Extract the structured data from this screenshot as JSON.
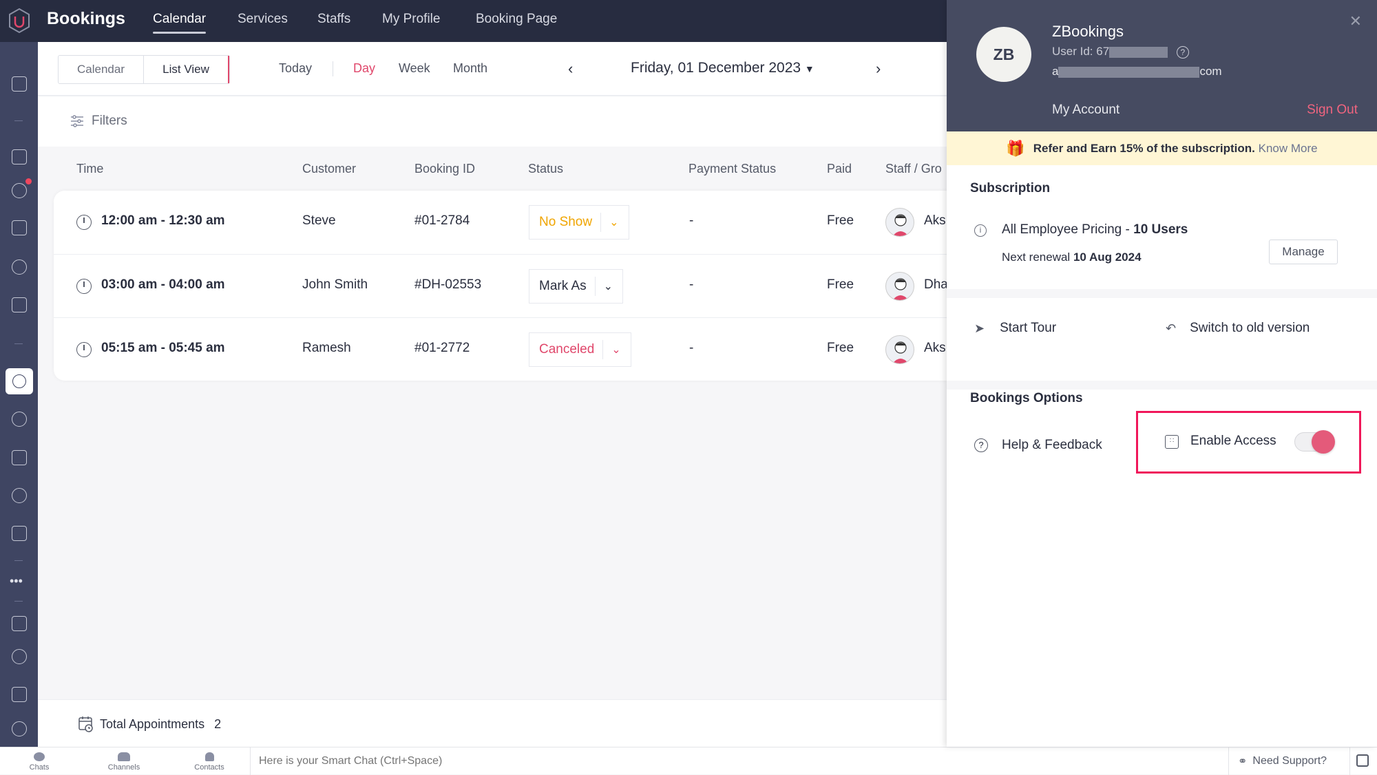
{
  "app": {
    "brand": "Bookings",
    "nav": [
      "Calendar",
      "Services",
      "Staffs",
      "My Profile",
      "Booking Page"
    ],
    "active_nav": "Calendar"
  },
  "toolbar": {
    "view_toggle": [
      "Calendar",
      "List View"
    ],
    "active_view": "List View",
    "ranges": [
      "Today",
      "Day",
      "Week",
      "Month"
    ],
    "active_range": "Day",
    "date": "Friday, 01 December 2023"
  },
  "filters": {
    "label": "Filters"
  },
  "table": {
    "headers": [
      "Time",
      "Customer",
      "Booking ID",
      "Status",
      "Payment Status",
      "Paid",
      "Staff / Gro"
    ],
    "rows": [
      {
        "time": "12:00 am - 12:30 am",
        "customer": "Steve",
        "booking_id": "#01-2784",
        "status": "No Show",
        "status_color": "#f0a500",
        "payment": "-",
        "paid": "Free",
        "staff": "Aks"
      },
      {
        "time": "03:00 am - 04:00 am",
        "customer": "John Smith",
        "booking_id": "#DH-02553",
        "status": "Mark As",
        "status_color": "#2b2f3f",
        "payment": "-",
        "paid": "Free",
        "staff": "Dha"
      },
      {
        "time": "05:15 am - 05:45 am",
        "customer": "Ramesh",
        "booking_id": "#01-2772",
        "status": "Canceled",
        "status_color": "#e0476b",
        "payment": "-",
        "paid": "Free",
        "staff": "Aks"
      }
    ]
  },
  "footer": {
    "total_label": "Total Appointments",
    "total_value": "2"
  },
  "bottombar": {
    "items": [
      "Chats",
      "Channels",
      "Contacts"
    ],
    "chat_placeholder": "Here is your Smart Chat (Ctrl+Space)",
    "support": "Need Support?"
  },
  "panel": {
    "initials": "ZB",
    "name": "ZBookings",
    "user_id_prefix": "User Id: 67",
    "email_prefix": "a",
    "email_suffix": "com",
    "my_account": "My Account",
    "sign_out": "Sign Out",
    "banner_text": "Refer and Earn 15% of the subscription.",
    "banner_link": "Know More",
    "subscription_title": "Subscription",
    "plan_prefix": "All Employee Pricing - ",
    "plan_users": "10 Users",
    "renewal_prefix": "Next renewal ",
    "renewal_date": "10 Aug 2024",
    "manage": "Manage",
    "start_tour": "Start Tour",
    "switch_old": "Switch to old version",
    "options_title": "Bookings Options",
    "help": "Help & Feedback",
    "enable_access": "Enable Access",
    "enable_access_on": true
  },
  "colors": {
    "accent": "#e0476b",
    "topbar": "#272c40",
    "sidebar": "#3f4562",
    "panel_header": "#464b61",
    "banner": "#fff6d5"
  }
}
